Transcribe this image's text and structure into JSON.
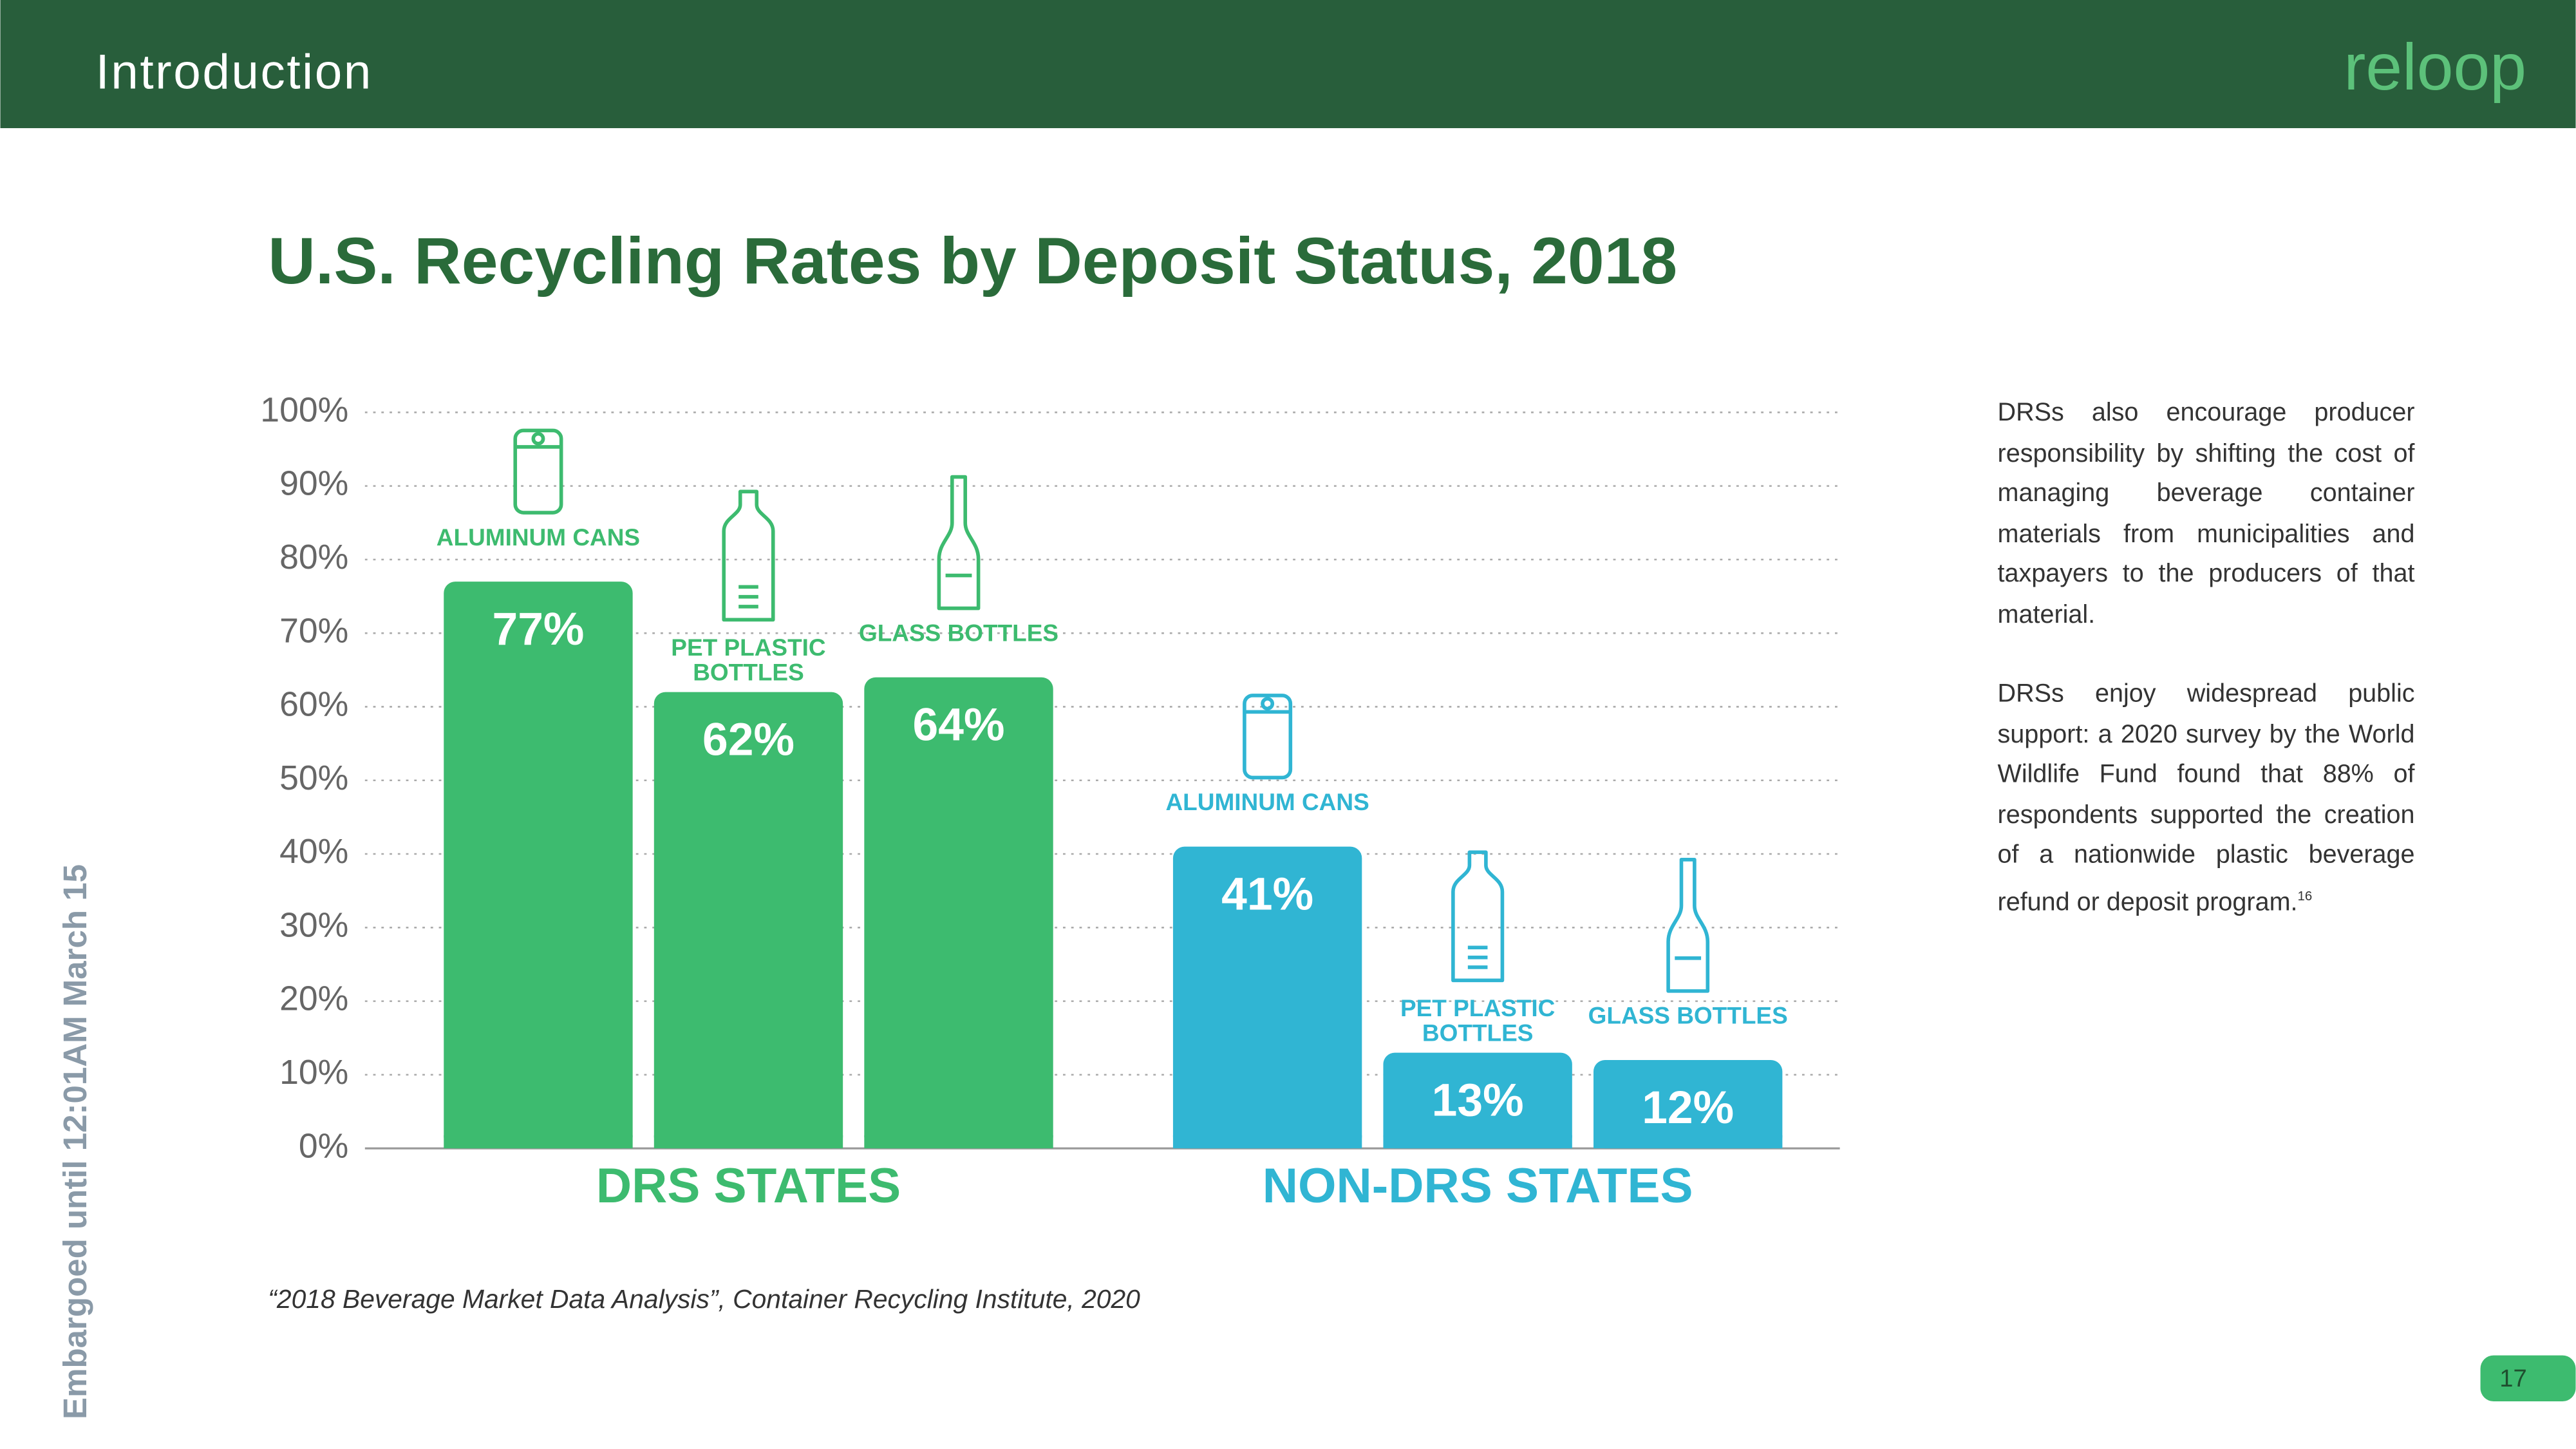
{
  "header": {
    "title": "Introduction",
    "logo": "reloop"
  },
  "chart_data": {
    "type": "bar",
    "title": "U.S. Recycling Rates by Deposit Status, 2018",
    "categories": [
      "ALUMINUM CANS",
      "PET PLASTIC BOTTLES",
      "GLASS BOTTLES"
    ],
    "series": [
      {
        "name": "DRS STATES",
        "color": "#3dbb6f",
        "values": [
          77,
          62,
          64
        ],
        "value_labels": [
          "77%",
          "62%",
          "64%"
        ]
      },
      {
        "name": "NON-DRS STATES",
        "color": "#30b5d3",
        "values": [
          41,
          13,
          12
        ],
        "value_labels": [
          "41%",
          "13%",
          "12%"
        ]
      }
    ],
    "ylim": [
      0,
      100
    ],
    "yticks": [
      {
        "value": 0,
        "label": "0%"
      },
      {
        "value": 10,
        "label": "10%"
      },
      {
        "value": 20,
        "label": "20%"
      },
      {
        "value": 30,
        "label": "30%"
      },
      {
        "value": 40,
        "label": "40%"
      },
      {
        "value": 50,
        "label": "50%"
      },
      {
        "value": 60,
        "label": "60%"
      },
      {
        "value": 70,
        "label": "70%"
      },
      {
        "value": 80,
        "label": "80%"
      },
      {
        "value": 90,
        "label": "90%"
      },
      {
        "value": 100,
        "label": "100%"
      }
    ],
    "grid": true,
    "source": "“2018 Beverage Market Data Analysis”, Container Recycling Institute, 2020"
  },
  "sidebar": {
    "paragraphs": [
      "DRSs also encourage producer responsibility by shifting the cost of managing beverage container materials from municipalities and taxpayers to the producers of that material.",
      "DRSs enjoy widespread public support: a 2020 survey by the World Wildlife Fund found that 88% of respondents supported the creation of a nationwide plastic beverage refund or deposit program."
    ],
    "footnote": "16"
  },
  "embargo": "Embargoed until 12:01AM March 15",
  "page_number": "17"
}
